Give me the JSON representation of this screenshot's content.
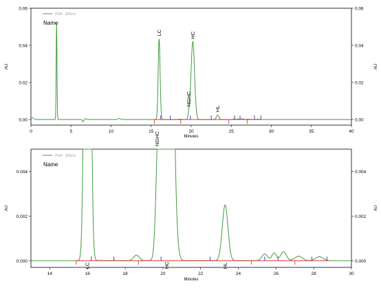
{
  "chart_data": [
    {
      "type": "line",
      "legend": "PDA - 205nm",
      "name_label": "Name",
      "xlabel": "Minutes",
      "ylabel": "AU",
      "ylabel_right": "AU",
      "xlim": [
        0,
        40
      ],
      "ylim": [
        -0.003,
        0.06
      ],
      "x_ticks": [
        0,
        5,
        10,
        15,
        20,
        25,
        30,
        35,
        40
      ],
      "y_ticks": [
        0.0,
        0.02,
        0.04,
        0.06
      ],
      "y_tick_labels": [
        "0.00",
        "0.02",
        "0.04",
        "0.06"
      ],
      "peaks": [
        {
          "label": "LC",
          "x": 16.0,
          "height": 0.0435,
          "width": 0.12
        },
        {
          "label": "HC",
          "x": 20.2,
          "height": 0.042,
          "width": 0.22
        },
        {
          "label": "NGHC",
          "x": 19.7,
          "height": 0.0012,
          "width": 0.1
        },
        {
          "label": "HL",
          "x": 23.3,
          "height": 0.0025,
          "width": 0.15
        }
      ],
      "baseline_segments": [
        [
          15.4,
          28.8
        ]
      ],
      "integration_marks": [
        15.4,
        16.2,
        17.4,
        18.7,
        19.9,
        22.5,
        24.7,
        25.4,
        26.1,
        27.0,
        27.9,
        28.7
      ]
    },
    {
      "type": "line",
      "legend": "PDA - 205nm",
      "name_label": "Name",
      "xlabel": "Minutes",
      "ylabel": "AU",
      "ylabel_right": "AU",
      "xlim": [
        13,
        30
      ],
      "ylim": [
        -0.0003,
        0.005
      ],
      "x_ticks": [
        14,
        16,
        18,
        20,
        22,
        24,
        26,
        28,
        30
      ],
      "y_ticks": [
        0.0,
        0.002,
        0.004
      ],
      "y_tick_labels": [
        "0.000",
        "0.002",
        "0.004"
      ],
      "peaks": [
        {
          "label": "LC",
          "x": 16.0,
          "height": 0.0435,
          "width": 0.12,
          "label_pos": "below"
        },
        {
          "label": "NGHC",
          "x": 19.7,
          "height": 0.0012,
          "width": 0.1,
          "label_pos": "above"
        },
        {
          "label": "HC",
          "x": 20.2,
          "height": 0.042,
          "width": 0.22,
          "label_pos": "below"
        },
        {
          "label": "HL",
          "x": 23.3,
          "height": 0.0025,
          "width": 0.15,
          "label_pos": "below"
        }
      ],
      "baseline_segments": [
        [
          15.4,
          28.8
        ]
      ],
      "integration_marks": [
        15.4,
        16.2,
        17.4,
        18.7,
        19.9,
        22.5,
        24.7,
        25.4,
        26.1,
        27.0,
        27.9,
        28.7
      ]
    }
  ]
}
